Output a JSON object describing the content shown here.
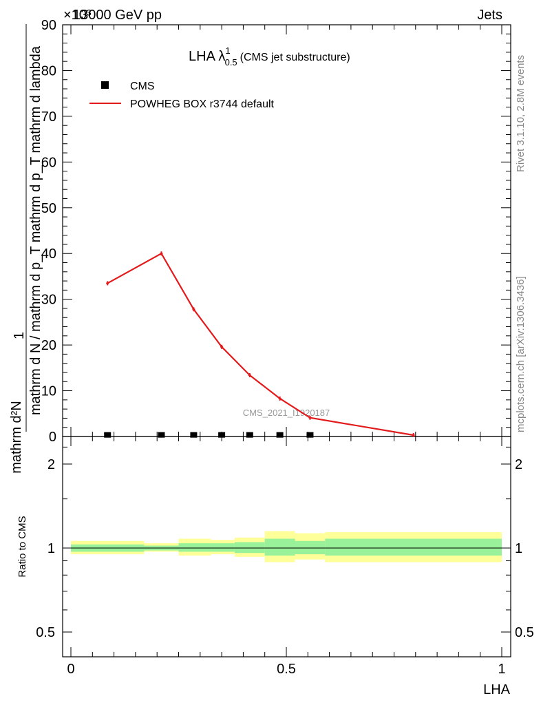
{
  "header": {
    "left": "13000 GeV pp",
    "right": "Jets",
    "exponent": "×10³"
  },
  "side": {
    "rivet": "Rivet 3.1.10,  2.8M events",
    "mcplots": "mcplots.cern.ch [arXiv:1306.3436]"
  },
  "chart_data": [
    {
      "type": "line",
      "title": "LHA λ",
      "title_super": "1",
      "title_sub": "0.5",
      "title_suffix": "(CMS jet substructure)",
      "ylabel_numerator": "1",
      "ylabel_denominator": "mathrm d N / mathrm d p_T mathrm d p_T mathrm d lambda",
      "ylabel_numerator2": "mathrm d²N",
      "watermark": "CMS_2021_I1920187",
      "xlim": [
        0,
        1
      ],
      "ylim": [
        0,
        90
      ],
      "y_multiplier": "1e3",
      "yticks": [
        0,
        10,
        20,
        30,
        40,
        50,
        60,
        70,
        80,
        90
      ],
      "legend_placement": "top-left",
      "series": [
        {
          "name": "CMS",
          "marker": "square",
          "color": "#000000",
          "x": [
            0.085,
            0.21,
            0.285,
            0.35,
            0.415,
            0.485,
            0.555
          ],
          "y": [
            0.2,
            0.2,
            0.2,
            0.2,
            0.2,
            0.2,
            0.2
          ]
        },
        {
          "name": "POWHEG BOX r3744 default",
          "marker": "line",
          "color": "#e31a1c",
          "x": [
            0.085,
            0.21,
            0.285,
            0.35,
            0.415,
            0.485,
            0.555,
            0.795
          ],
          "y": [
            33.5,
            40.0,
            27.8,
            19.6,
            13.4,
            8.3,
            4.1,
            0.3
          ]
        }
      ]
    },
    {
      "type": "area",
      "ylabel": "Ratio to CMS",
      "xlabel": "LHA",
      "xlim": [
        0,
        1
      ],
      "ylim": [
        0.4,
        2.4
      ],
      "yscale": "log",
      "yticks": [
        0.5,
        1,
        2
      ],
      "xticks": [
        0,
        0.5,
        1
      ],
      "xtick_labels": [
        "0",
        "0.5",
        "1"
      ],
      "ytick_labels": [
        "0.5",
        "1",
        "2"
      ],
      "bins": [
        {
          "lo": 0.0,
          "hi": 0.17,
          "inner": [
            0.97,
            1.03
          ],
          "outer": [
            0.95,
            1.06
          ]
        },
        {
          "lo": 0.17,
          "hi": 0.25,
          "inner": [
            0.98,
            1.02
          ],
          "outer": [
            0.97,
            1.04
          ]
        },
        {
          "lo": 0.25,
          "hi": 0.325,
          "inner": [
            0.97,
            1.04
          ],
          "outer": [
            0.94,
            1.08
          ]
        },
        {
          "lo": 0.325,
          "hi": 0.38,
          "inner": [
            0.97,
            1.04
          ],
          "outer": [
            0.95,
            1.07
          ]
        },
        {
          "lo": 0.38,
          "hi": 0.45,
          "inner": [
            0.96,
            1.05
          ],
          "outer": [
            0.93,
            1.09
          ]
        },
        {
          "lo": 0.45,
          "hi": 0.52,
          "inner": [
            0.94,
            1.08
          ],
          "outer": [
            0.89,
            1.15
          ]
        },
        {
          "lo": 0.52,
          "hi": 0.59,
          "inner": [
            0.95,
            1.06
          ],
          "outer": [
            0.91,
            1.13
          ]
        },
        {
          "lo": 0.59,
          "hi": 1.0,
          "inner": [
            0.94,
            1.08
          ],
          "outer": [
            0.89,
            1.14
          ]
        }
      ],
      "line_value": 1
    }
  ]
}
